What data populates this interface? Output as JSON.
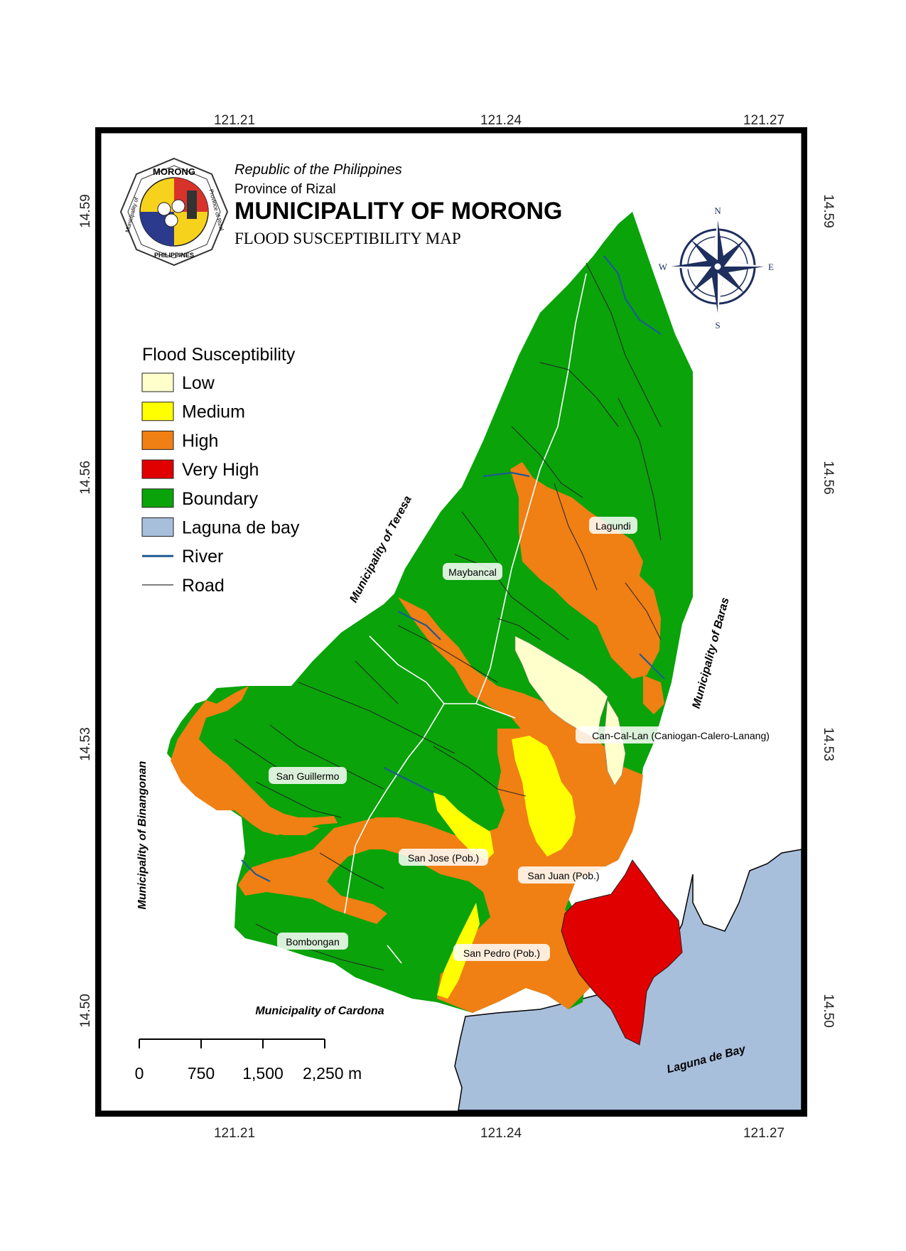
{
  "header": {
    "republic": "Republic of the Philippines",
    "province": "Province of Rizal",
    "municipality": "MUNICIPALITY OF MORONG",
    "map_title": "FLOOD SUSCEPTIBILITY MAP"
  },
  "seal": {
    "text_top": "MORONG",
    "text_left": "Municipality of",
    "text_right": "Province of Rizal",
    "text_bottom": "PHILIPPINES"
  },
  "compass": {
    "n": "N",
    "s": "S",
    "e": "E",
    "w": "W"
  },
  "grid": {
    "longitudes": [
      "121.21",
      "121.24",
      "121.27"
    ],
    "latitudes": [
      "14.59",
      "14.56",
      "14.53",
      "14.50"
    ]
  },
  "legend": {
    "title": "Flood Susceptibility",
    "items": [
      {
        "label": "Low",
        "color": "#ffffcc",
        "kind": "fill"
      },
      {
        "label": "Medium",
        "color": "#ffff00",
        "kind": "fill"
      },
      {
        "label": "High",
        "color": "#f07f14",
        "kind": "fill"
      },
      {
        "label": "Very High",
        "color": "#e00000",
        "kind": "fill"
      },
      {
        "label": "Boundary",
        "color": "#0aa30a",
        "kind": "fill"
      },
      {
        "label": "Laguna de bay",
        "color": "#a8bfdc",
        "kind": "fill"
      },
      {
        "label": "River",
        "color": "#1f5a94",
        "kind": "line"
      },
      {
        "label": "Road",
        "color": "#333333",
        "kind": "line"
      }
    ]
  },
  "barangays": {
    "lagundi": "Lagundi",
    "maybancal": "Maybancal",
    "can_cal_lan": "Can-Cal-Lan (Caniogan-Calero-Lanang)",
    "san_guillermo": "San Guillermo",
    "san_jose": "San Jose (Pob.)",
    "san_juan": "San Juan (Pob.)",
    "bombongan": "Bombongan",
    "san_pedro": "San Pedro (Pob.)"
  },
  "neighbors": {
    "teresa": "Municipality of Teresa",
    "baras": "Municipality of Baras",
    "binangonan": "Municipality of Binangonan",
    "cardona": "Municipality of Cardona",
    "laguna": "Laguna de Bay"
  },
  "scale_bar": {
    "labels": [
      "0",
      "750",
      "1,500",
      "2,250 m"
    ]
  },
  "colors": {
    "boundary": "#0aa30a",
    "low": "#ffffcc",
    "medium": "#ffff00",
    "high": "#f07f14",
    "very_high": "#e00000",
    "lake": "#a8bfdc",
    "river": "#1f5a94"
  }
}
